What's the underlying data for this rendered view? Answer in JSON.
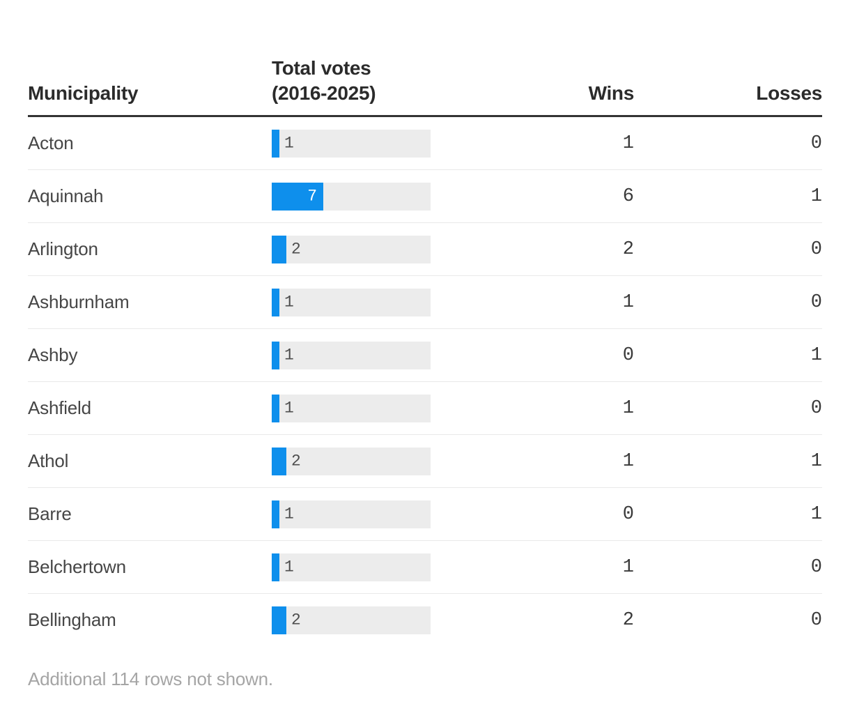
{
  "header": {
    "col_municipality": "Municipality",
    "col_total_votes_line1": "Total votes",
    "col_total_votes_line2": "(2016-2025)",
    "col_wins": "Wins",
    "col_losses": "Losses"
  },
  "footer": {
    "note": "Additional 114 rows not shown."
  },
  "colors": {
    "bar_blue": "#0e8fec",
    "bar_track": "#ececec",
    "bar_label_inside": "#ffffff",
    "bar_label_outside": "#4d4d4d",
    "header_rule": "#333333",
    "row_separator": "#e9e9e9",
    "footnote_gray": "#a5a5a5"
  },
  "chart_data": {
    "type": "table",
    "title": "",
    "columns": [
      "Municipality",
      "Total votes (2016-2025)",
      "Wins",
      "Losses"
    ],
    "bar_column": "Total votes (2016-2025)",
    "bar_axis": {
      "min": 0,
      "approx_scale_max": 21.5
    },
    "rows": [
      {
        "municipality": "Acton",
        "total_votes": 1,
        "wins": 1,
        "losses": 0
      },
      {
        "municipality": "Aquinnah",
        "total_votes": 7,
        "wins": 6,
        "losses": 1
      },
      {
        "municipality": "Arlington",
        "total_votes": 2,
        "wins": 2,
        "losses": 0
      },
      {
        "municipality": "Ashburnham",
        "total_votes": 1,
        "wins": 1,
        "losses": 0
      },
      {
        "municipality": "Ashby",
        "total_votes": 1,
        "wins": 0,
        "losses": 1
      },
      {
        "municipality": "Ashfield",
        "total_votes": 1,
        "wins": 1,
        "losses": 0
      },
      {
        "municipality": "Athol",
        "total_votes": 2,
        "wins": 1,
        "losses": 1
      },
      {
        "municipality": "Barre",
        "total_votes": 1,
        "wins": 0,
        "losses": 1
      },
      {
        "municipality": "Belchertown",
        "total_votes": 1,
        "wins": 1,
        "losses": 0
      },
      {
        "municipality": "Bellingham",
        "total_votes": 2,
        "wins": 2,
        "losses": 0
      }
    ]
  }
}
